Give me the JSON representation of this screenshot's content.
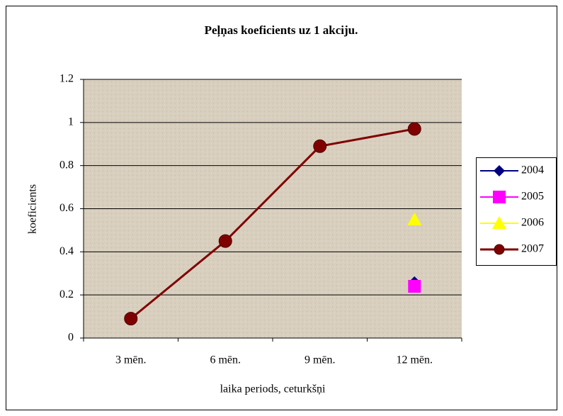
{
  "chart_data": {
    "type": "line",
    "title": "Peļņas koeficients uz 1 akciju.",
    "x_label": "laika periods, ceturkšņi",
    "y_label": "koeficients",
    "categories": [
      "3 mēn.",
      "6 mēn.",
      "9 mēn.",
      "12 mēn."
    ],
    "series": [
      {
        "name": "2004",
        "color": "#000080",
        "marker": "diamond",
        "values": [
          null,
          null,
          null,
          0.26
        ]
      },
      {
        "name": "2005",
        "color": "#ff00ff",
        "marker": "square",
        "values": [
          null,
          null,
          null,
          0.24
        ]
      },
      {
        "name": "2006",
        "color": "#ffff00",
        "marker": "triangle",
        "values": [
          null,
          null,
          null,
          0.55
        ]
      },
      {
        "name": "2007",
        "color": "#800000",
        "marker": "circle",
        "values": [
          0.09,
          0.45,
          0.89,
          0.97
        ]
      }
    ],
    "ylim": [
      0,
      1.2
    ],
    "yticks": [
      0,
      0.2,
      0.4,
      0.6,
      0.8,
      1,
      1.2
    ],
    "grid": true,
    "legend": "right"
  }
}
